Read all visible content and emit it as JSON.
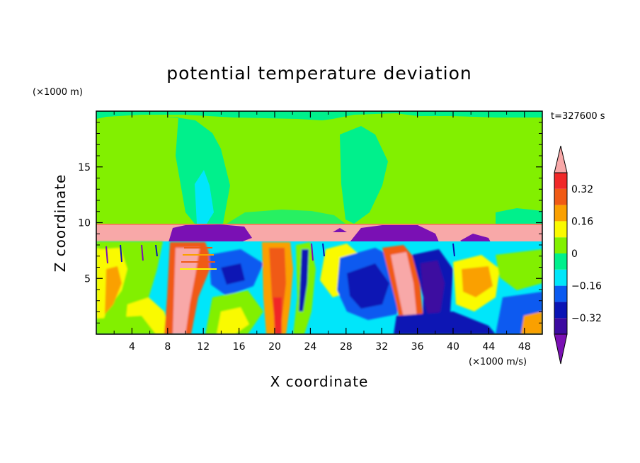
{
  "chart_data": {
    "type": "heatmap",
    "title": "potential temperature deviation",
    "xlabel": "X coordinate",
    "ylabel": "Z coordinate",
    "x_unit": "(×1000 m/s)",
    "y_unit": "(×1000 m)",
    "time_label": "t=327600 s",
    "xlim": [
      0,
      50
    ],
    "ylim": [
      0,
      20
    ],
    "x_ticks": [
      4,
      8,
      12,
      16,
      20,
      24,
      28,
      32,
      36,
      40,
      44,
      48
    ],
    "y_ticks": [
      5,
      10,
      15
    ],
    "colorbar": {
      "levels": [
        -0.4,
        -0.32,
        -0.24,
        -0.16,
        -0.08,
        0,
        0.08,
        0.16,
        0.24,
        0.32,
        0.4
      ],
      "labels": [
        "0.32",
        "0.16",
        "0",
        "−0.16",
        "−0.32"
      ],
      "label_values": [
        0.32,
        0.16,
        0,
        -0.16,
        -0.32
      ],
      "colors": [
        "#7a10b4",
        "#3c0aa0",
        "#0a14b4",
        "#0a5af0",
        "#00e6fa",
        "#00f08c",
        "#82f000",
        "#fafa00",
        "#faa000",
        "#f05a14",
        "#f02828",
        "#f8a8a8"
      ]
    }
  }
}
